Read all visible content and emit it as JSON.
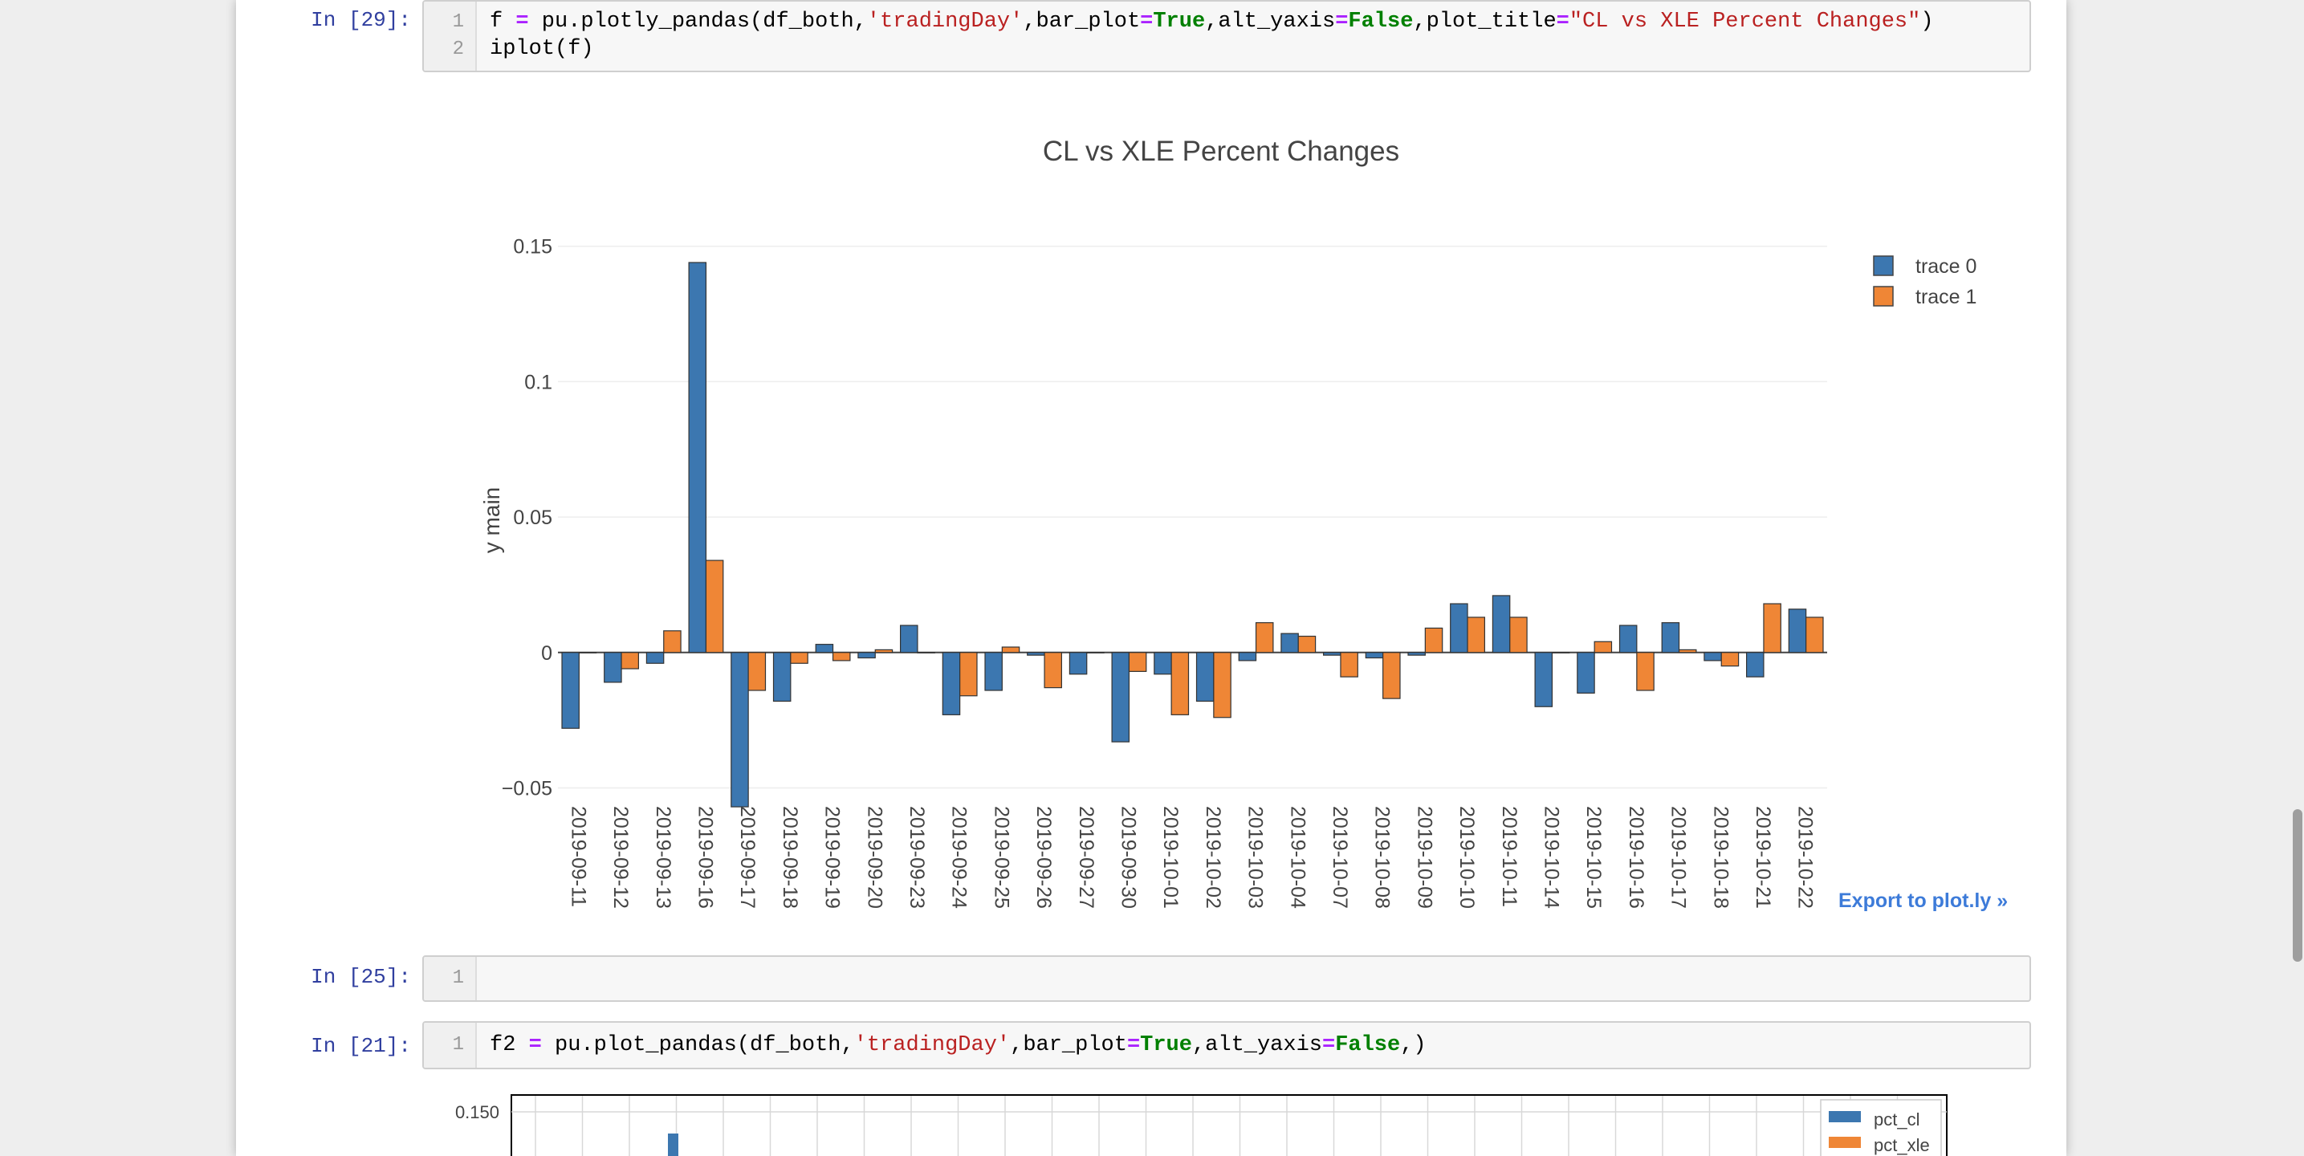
{
  "cells": [
    {
      "prompt": "In [29]:",
      "lines": [
        "1",
        "2"
      ],
      "code_line1": [
        {
          "t": "f ",
          "c": ""
        },
        {
          "t": "=",
          "c": "op"
        },
        {
          "t": " pu.plotly_pandas(df_both,",
          "c": ""
        },
        {
          "t": "'tradingDay'",
          "c": "str"
        },
        {
          "t": ",bar_plot",
          "c": ""
        },
        {
          "t": "=",
          "c": "op"
        },
        {
          "t": "True",
          "c": "kw"
        },
        {
          "t": ",alt_yaxis",
          "c": ""
        },
        {
          "t": "=",
          "c": "op"
        },
        {
          "t": "False",
          "c": "kw"
        },
        {
          "t": ",plot_title",
          "c": ""
        },
        {
          "t": "=",
          "c": "op"
        },
        {
          "t": "\"CL vs XLE Percent Changes\"",
          "c": "str"
        },
        {
          "t": ")",
          "c": ""
        }
      ],
      "code_line2": "iplot(f)"
    },
    {
      "prompt": "In [25]:",
      "lines": [
        "1"
      ]
    },
    {
      "prompt": "In [21]:",
      "lines": [
        "1"
      ],
      "code_line1": [
        {
          "t": "f2 ",
          "c": ""
        },
        {
          "t": "=",
          "c": "op"
        },
        {
          "t": " pu.plot_pandas(df_both,",
          "c": ""
        },
        {
          "t": "'tradingDay'",
          "c": "str"
        },
        {
          "t": ",bar_plot",
          "c": ""
        },
        {
          "t": "=",
          "c": "op"
        },
        {
          "t": "True",
          "c": "kw"
        },
        {
          "t": ",alt_yaxis",
          "c": ""
        },
        {
          "t": "=",
          "c": "op"
        },
        {
          "t": "False",
          "c": "kw"
        },
        {
          "t": ",)",
          "c": ""
        }
      ]
    }
  ],
  "export_link": "Export to plot.ly »",
  "chart_data": [
    {
      "type": "bar",
      "title": "CL vs XLE Percent Changes",
      "ylabel": "y main",
      "xlabel": "",
      "ylim": [
        -0.0555,
        0.152
      ],
      "yticks": [
        {
          "v": 0.15,
          "label": "0.15"
        },
        {
          "v": 0.1,
          "label": "0.1"
        },
        {
          "v": 0.05,
          "label": "0.05"
        },
        {
          "v": 0,
          "label": "0"
        },
        {
          "v": -0.05,
          "label": "−0.05"
        }
      ],
      "grid": true,
      "legend_position": "top-right",
      "categories": [
        "2019-09-11",
        "2019-09-12",
        "2019-09-13",
        "2019-09-16",
        "2019-09-17",
        "2019-09-18",
        "2019-09-19",
        "2019-09-20",
        "2019-09-23",
        "2019-09-24",
        "2019-09-25",
        "2019-09-26",
        "2019-09-27",
        "2019-09-30",
        "2019-10-01",
        "2019-10-02",
        "2019-10-03",
        "2019-10-04",
        "2019-10-07",
        "2019-10-08",
        "2019-10-09",
        "2019-10-10",
        "2019-10-11",
        "2019-10-14",
        "2019-10-15",
        "2019-10-16",
        "2019-10-17",
        "2019-10-18",
        "2019-10-21",
        "2019-10-22"
      ],
      "series": [
        {
          "name": "trace 0",
          "color": "#3c77b0",
          "values": [
            -0.028,
            -0.011,
            -0.004,
            0.144,
            -0.057,
            -0.018,
            0.003,
            -0.002,
            0.01,
            -0.023,
            -0.014,
            -0.001,
            -0.008,
            -0.033,
            -0.008,
            -0.018,
            -0.003,
            0.007,
            -0.001,
            -0.002,
            -0.001,
            0.018,
            0.021,
            -0.02,
            -0.015,
            0.01,
            0.011,
            -0.003,
            -0.009,
            0.016
          ]
        },
        {
          "name": "trace 1",
          "color": "#ef8636",
          "values": [
            0.0,
            -0.006,
            0.008,
            0.034,
            -0.014,
            -0.004,
            -0.003,
            0.001,
            0.0,
            -0.016,
            0.002,
            -0.013,
            0.0,
            -0.007,
            -0.023,
            -0.024,
            0.011,
            0.006,
            -0.009,
            -0.017,
            0.009,
            0.013,
            0.013,
            0.0,
            0.004,
            -0.014,
            0.001,
            -0.005,
            0.018,
            0.013
          ]
        }
      ]
    },
    {
      "type": "bar",
      "title": "",
      "yticks": [
        {
          "v": 0.15,
          "label": "0.150"
        }
      ],
      "series": [
        {
          "name": "pct_cl",
          "color": "#3c77b0"
        },
        {
          "name": "pct_xle",
          "color": "#ef8636"
        }
      ]
    }
  ]
}
